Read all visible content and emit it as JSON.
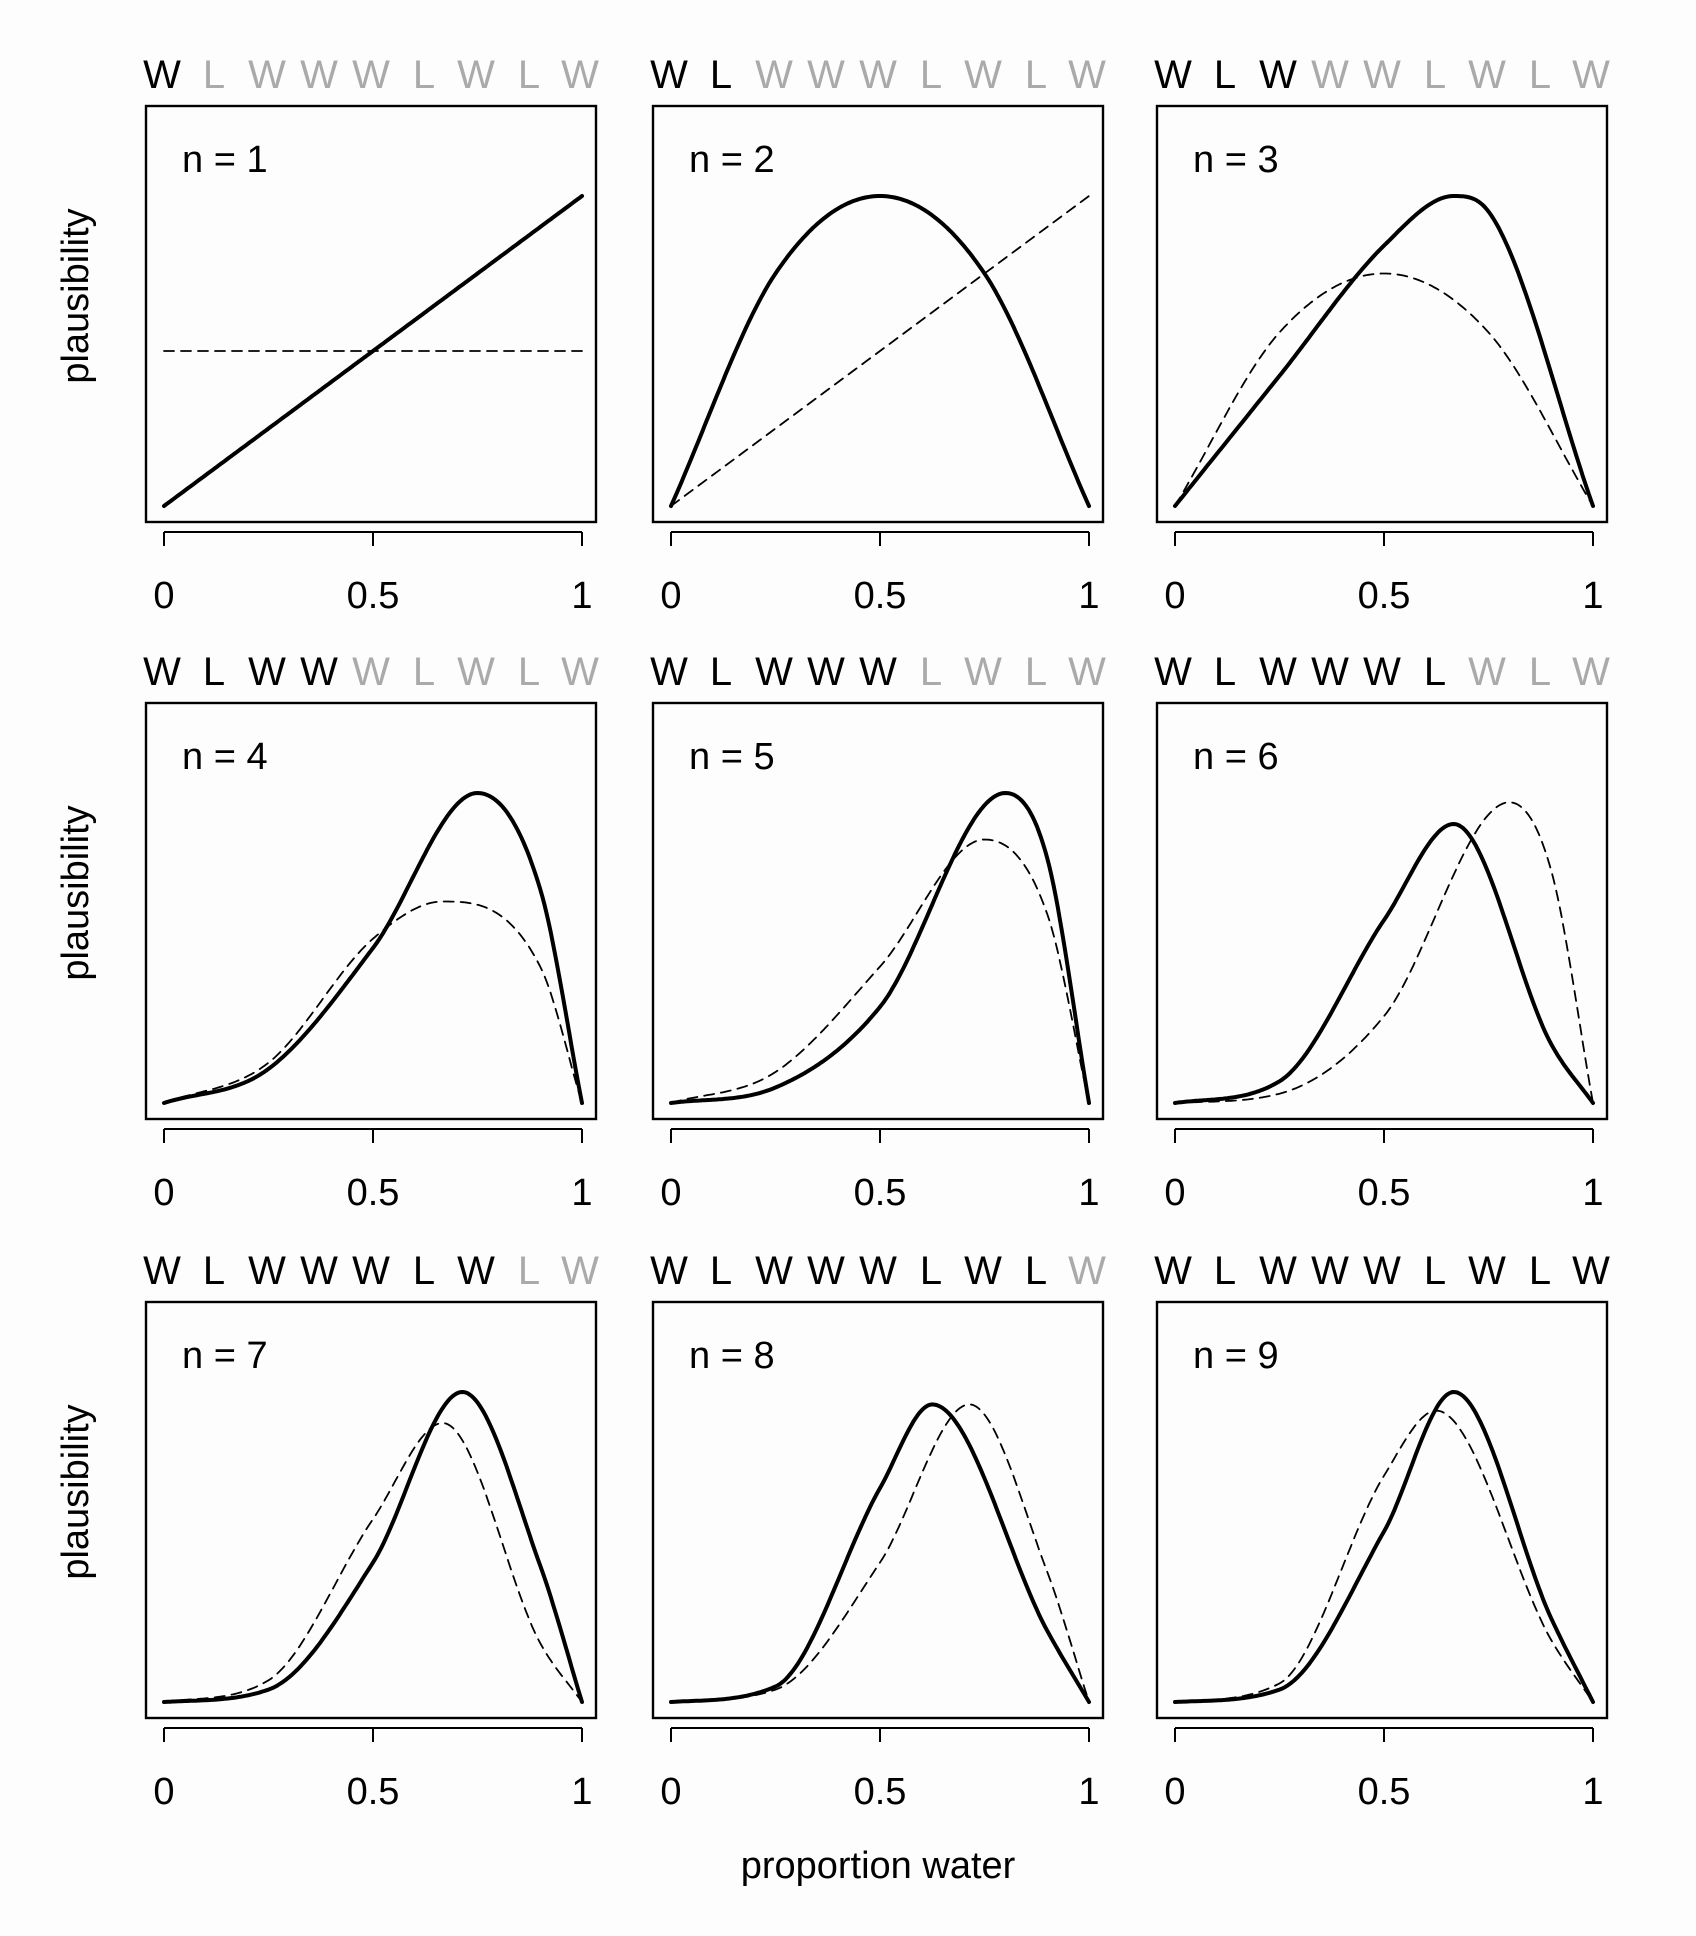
{
  "figure": {
    "sequence": [
      "W",
      "L",
      "W",
      "W",
      "W",
      "L",
      "W",
      "L",
      "W"
    ],
    "colors": {
      "observed": "#000000",
      "unobserved": "#aaaaaa",
      "frame": "#000000",
      "curve": "#000000"
    },
    "y_axis_label": "plausibility",
    "x_axis_label": "proportion water"
  },
  "chart_data": [
    {
      "type": "line",
      "n_label": "n = 1",
      "x_ticks": [
        "0",
        "0.5",
        "1"
      ],
      "xlim": [
        0,
        1
      ],
      "ylabel": "plausibility",
      "xlabel": "",
      "grid": false,
      "series": [
        {
          "style": "solid",
          "x": [
            0,
            0.5,
            1
          ],
          "y": [
            0,
            0.5,
            1
          ]
        },
        {
          "style": "dashed",
          "x": [
            0,
            1
          ],
          "y": [
            0.5,
            0.5
          ]
        }
      ]
    },
    {
      "type": "line",
      "n_label": "n = 2",
      "x_ticks": [
        "0",
        "0.5",
        "1"
      ],
      "xlim": [
        0,
        1
      ],
      "ylabel": "",
      "xlabel": "",
      "grid": false,
      "series": [
        {
          "style": "solid",
          "x": [
            0,
            0.25,
            0.5,
            0.75,
            1
          ],
          "y": [
            0,
            0.75,
            1,
            0.75,
            0
          ]
        },
        {
          "style": "dashed",
          "x": [
            0,
            1
          ],
          "y": [
            0,
            1
          ]
        }
      ]
    },
    {
      "type": "line",
      "n_label": "n = 3",
      "x_ticks": [
        "0",
        "0.5",
        "1"
      ],
      "xlim": [
        0,
        1
      ],
      "ylabel": "",
      "xlabel": "",
      "grid": false,
      "series": [
        {
          "style": "solid",
          "x": [
            0,
            0.25,
            0.5,
            0.667,
            0.75,
            1
          ],
          "y": [
            0,
            0.42,
            0.84,
            1,
            0.95,
            0
          ]
        },
        {
          "style": "dashed",
          "x": [
            0,
            0.25,
            0.5,
            0.75,
            1
          ],
          "y": [
            0,
            0.56,
            0.75,
            0.56,
            0
          ]
        }
      ]
    },
    {
      "type": "line",
      "n_label": "n = 4",
      "x_ticks": [
        "0",
        "0.5",
        "1"
      ],
      "xlim": [
        0,
        1
      ],
      "ylabel": "plausibility",
      "xlabel": "",
      "grid": false,
      "series": [
        {
          "style": "solid",
          "x": [
            0,
            0.25,
            0.5,
            0.75,
            0.9,
            1
          ],
          "y": [
            0,
            0.11,
            0.5,
            1,
            0.69,
            0
          ]
        },
        {
          "style": "dashed",
          "x": [
            0,
            0.25,
            0.5,
            0.667,
            0.9,
            1
          ],
          "y": [
            0,
            0.13,
            0.53,
            0.65,
            0.44,
            0
          ]
        }
      ]
    },
    {
      "type": "line",
      "n_label": "n = 5",
      "x_ticks": [
        "0",
        "0.5",
        "1"
      ],
      "xlim": [
        0,
        1
      ],
      "ylabel": "",
      "xlabel": "",
      "grid": false,
      "series": [
        {
          "style": "solid",
          "x": [
            0,
            0.25,
            0.5,
            0.8,
            0.9,
            1
          ],
          "y": [
            0,
            0.05,
            0.31,
            1,
            0.79,
            0
          ]
        },
        {
          "style": "dashed",
          "x": [
            0,
            0.25,
            0.5,
            0.75,
            0.9,
            1
          ],
          "y": [
            0,
            0.1,
            0.44,
            0.85,
            0.61,
            0
          ]
        }
      ]
    },
    {
      "type": "line",
      "n_label": "n = 6",
      "x_ticks": [
        "0",
        "0.5",
        "1"
      ],
      "xlim": [
        0,
        1
      ],
      "ylabel": "",
      "xlabel": "",
      "grid": false,
      "series": [
        {
          "style": "solid",
          "x": [
            0,
            0.25,
            0.5,
            0.667,
            0.9,
            1
          ],
          "y": [
            0,
            0.07,
            0.59,
            0.9,
            0.19,
            0
          ]
        },
        {
          "style": "dashed",
          "x": [
            0,
            0.25,
            0.5,
            0.8,
            0.9,
            1
          ],
          "y": [
            0,
            0.03,
            0.28,
            0.97,
            0.75,
            0
          ]
        }
      ]
    },
    {
      "type": "line",
      "n_label": "n = 7",
      "x_ticks": [
        "0",
        "0.5",
        "1"
      ],
      "xlim": [
        0,
        1
      ],
      "ylabel": "plausibility",
      "xlabel": "",
      "grid": false,
      "series": [
        {
          "style": "solid",
          "x": [
            0,
            0.25,
            0.5,
            0.714,
            0.9,
            1
          ],
          "y": [
            0,
            0.04,
            0.45,
            1,
            0.44,
            0
          ]
        },
        {
          "style": "dashed",
          "x": [
            0,
            0.25,
            0.5,
            0.667,
            0.9,
            1
          ],
          "y": [
            0,
            0.07,
            0.59,
            0.9,
            0.19,
            0
          ]
        }
      ]
    },
    {
      "type": "line",
      "n_label": "n = 8",
      "x_ticks": [
        "0",
        "0.5",
        "1"
      ],
      "xlim": [
        0,
        1
      ],
      "ylabel": "",
      "xlabel": "proportion water",
      "grid": false,
      "series": [
        {
          "style": "solid",
          "x": [
            0,
            0.25,
            0.5,
            0.625,
            0.9,
            1
          ],
          "y": [
            0,
            0.05,
            0.69,
            0.96,
            0.23,
            0
          ]
        },
        {
          "style": "dashed",
          "x": [
            0,
            0.25,
            0.5,
            0.714,
            0.9,
            1
          ],
          "y": [
            0,
            0.04,
            0.45,
            0.96,
            0.42,
            0
          ]
        }
      ]
    },
    {
      "type": "line",
      "n_label": "n = 9",
      "x_ticks": [
        "0",
        "0.5",
        "1"
      ],
      "xlim": [
        0,
        1
      ],
      "ylabel": "",
      "xlabel": "",
      "grid": false,
      "series": [
        {
          "style": "solid",
          "x": [
            0,
            0.25,
            0.5,
            0.667,
            0.9,
            1
          ],
          "y": [
            0,
            0.04,
            0.55,
            1,
            0.27,
            0
          ]
        },
        {
          "style": "dashed",
          "x": [
            0,
            0.25,
            0.5,
            0.625,
            0.9,
            1
          ],
          "y": [
            0,
            0.06,
            0.73,
            0.94,
            0.2,
            0
          ]
        }
      ]
    }
  ]
}
